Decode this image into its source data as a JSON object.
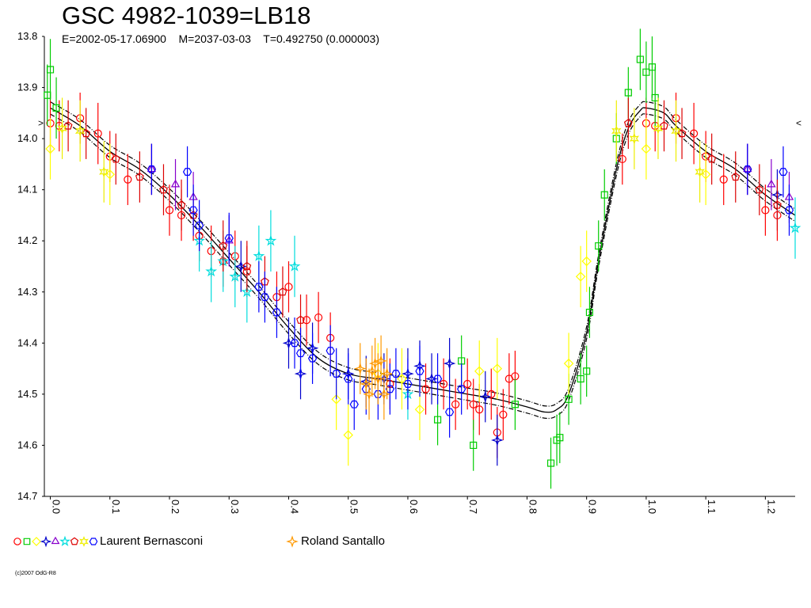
{
  "header": {
    "title": "GSC 4982-1039=LB18",
    "subtitle": "E=2002-05-17.06900    M=2037-03-03    T=0.492750 (0.000003)"
  },
  "chart_data": {
    "type": "scatter",
    "title": "GSC 4982-1039=LB18",
    "xlabel": "",
    "ylabel": "",
    "xlim": [
      -0.01,
      1.25
    ],
    "ylim": [
      13.8,
      14.7
    ],
    "y_inverted": true,
    "grid": false,
    "x_ticks": [
      0.0,
      0.1,
      0.2,
      0.3,
      0.4,
      0.5,
      0.6,
      0.7,
      0.8,
      0.9,
      1.0,
      1.1,
      1.2
    ],
    "x_tick_labels": [
      "0.0",
      "0.1",
      "0.2",
      "0.3",
      "0.4",
      "0.5",
      "0.6",
      "0.7",
      "0.8",
      "0.9",
      "1.0",
      "1.1",
      "1.2"
    ],
    "y_ticks": [
      13.8,
      13.9,
      14.0,
      14.1,
      14.2,
      14.3,
      14.4,
      14.5,
      14.6,
      14.7
    ],
    "y_tick_labels": [
      "13.8",
      "13.9",
      "14.0",
      "14.1",
      "14.2",
      "14.3",
      "14.4",
      "14.5",
      "14.6",
      "14.7"
    ],
    "side_marks": {
      "left": ">",
      "right": "<",
      "level": 13.97
    },
    "model_curve": {
      "x": [
        0.0,
        0.05,
        0.1,
        0.15,
        0.2,
        0.25,
        0.3,
        0.35,
        0.4,
        0.45,
        0.5,
        0.55,
        0.6,
        0.65,
        0.7,
        0.75,
        0.8,
        0.83,
        0.85,
        0.87,
        0.9,
        0.92,
        0.95,
        0.97,
        0.99,
        1.0,
        1.03,
        1.05,
        1.1,
        1.15,
        1.2,
        1.25
      ],
      "y": [
        13.94,
        13.975,
        14.025,
        14.06,
        14.11,
        14.17,
        14.235,
        14.3,
        14.37,
        14.43,
        14.46,
        14.47,
        14.48,
        14.49,
        14.5,
        14.51,
        14.525,
        14.535,
        14.53,
        14.5,
        14.38,
        14.24,
        14.06,
        13.98,
        13.945,
        13.94,
        13.95,
        13.975,
        14.025,
        14.06,
        14.11,
        14.15
      ],
      "band": 0.012
    },
    "series": [
      {
        "name": "Laurent Bernasconi",
        "marker": "circle",
        "color": "#ff0000",
        "points": [
          [
            0.0,
            13.97,
            0.06
          ],
          [
            0.015,
            13.975,
            0.05
          ],
          [
            0.05,
            13.96,
            0.05
          ],
          [
            0.08,
            13.99,
            0.06
          ],
          [
            0.1,
            14.035,
            0.05
          ],
          [
            0.13,
            14.08,
            0.05
          ],
          [
            0.17,
            14.06,
            0.05
          ],
          [
            0.2,
            14.14,
            0.05
          ],
          [
            0.22,
            14.15,
            0.05
          ],
          [
            0.25,
            14.19,
            0.05
          ],
          [
            0.27,
            14.22,
            0.05
          ],
          [
            0.29,
            14.24,
            0.05
          ],
          [
            0.31,
            14.23,
            0.05
          ],
          [
            0.33,
            14.26,
            0.05
          ],
          [
            0.38,
            14.31,
            0.05
          ],
          [
            0.4,
            14.29,
            0.05
          ],
          [
            0.43,
            14.355,
            0.05
          ],
          [
            0.45,
            14.35,
            0.05
          ],
          [
            0.47,
            14.39,
            0.05
          ],
          [
            0.57,
            14.48,
            0.05
          ],
          [
            0.63,
            14.49,
            0.05
          ],
          [
            0.66,
            14.48,
            0.05
          ],
          [
            0.68,
            14.52,
            0.05
          ],
          [
            0.7,
            14.48,
            0.05
          ],
          [
            0.71,
            14.52,
            0.05
          ],
          [
            0.72,
            14.53,
            0.05
          ],
          [
            0.74,
            14.5,
            0.05
          ],
          [
            0.75,
            14.575,
            0.05
          ],
          [
            0.76,
            14.54,
            0.05
          ],
          [
            0.77,
            14.47,
            0.05
          ],
          [
            0.78,
            14.465,
            0.05
          ],
          [
            0.96,
            14.04,
            0.05
          ],
          [
            1.0,
            13.97,
            0.05
          ],
          [
            1.015,
            13.975,
            0.05
          ],
          [
            1.05,
            13.96,
            0.05
          ],
          [
            1.08,
            13.99,
            0.06
          ],
          [
            1.1,
            14.035,
            0.05
          ],
          [
            1.13,
            14.08,
            0.05
          ],
          [
            1.17,
            14.06,
            0.05
          ],
          [
            1.2,
            14.14,
            0.05
          ],
          [
            1.22,
            14.15,
            0.05
          ]
        ]
      },
      {
        "name": "Laurent Bernasconi",
        "marker": "square",
        "color": "#00cc00",
        "points": [
          [
            -0.005,
            13.915,
            0.06
          ],
          [
            0.0,
            13.865,
            0.06
          ],
          [
            0.01,
            13.94,
            0.06
          ],
          [
            0.65,
            14.55,
            0.05
          ],
          [
            0.69,
            14.435,
            0.05
          ],
          [
            0.71,
            14.6,
            0.05
          ],
          [
            0.78,
            14.52,
            0.05
          ],
          [
            0.84,
            14.635,
            0.05
          ],
          [
            0.85,
            14.59,
            0.05
          ],
          [
            0.855,
            14.585,
            0.05
          ],
          [
            0.87,
            14.51,
            0.05
          ],
          [
            0.89,
            14.47,
            0.05
          ],
          [
            0.9,
            14.455,
            0.05
          ],
          [
            0.905,
            14.34,
            0.05
          ],
          [
            0.92,
            14.21,
            0.05
          ],
          [
            0.93,
            14.11,
            0.05
          ],
          [
            0.95,
            14.0,
            0.05
          ],
          [
            0.97,
            13.91,
            0.05
          ],
          [
            0.99,
            13.845,
            0.06
          ],
          [
            1.0,
            13.87,
            0.06
          ],
          [
            1.01,
            13.86,
            0.06
          ],
          [
            1.015,
            13.92,
            0.06
          ]
        ]
      },
      {
        "name": "Laurent Bernasconi",
        "marker": "diamond",
        "color": "#ffff00",
        "points": [
          [
            0.0,
            14.02,
            0.06
          ],
          [
            0.1,
            14.07,
            0.06
          ],
          [
            0.48,
            14.51,
            0.06
          ],
          [
            0.5,
            14.58,
            0.06
          ],
          [
            0.55,
            14.46,
            0.06
          ],
          [
            0.59,
            14.47,
            0.06
          ],
          [
            0.62,
            14.53,
            0.06
          ],
          [
            0.72,
            14.455,
            0.06
          ],
          [
            0.75,
            14.45,
            0.06
          ],
          [
            0.87,
            14.44,
            0.06
          ],
          [
            0.89,
            14.27,
            0.06
          ],
          [
            0.9,
            14.24,
            0.06
          ],
          [
            1.0,
            14.02,
            0.06
          ],
          [
            1.1,
            14.07,
            0.06
          ]
        ]
      },
      {
        "name": "Laurent Bernasconi",
        "marker": "star4",
        "color": "#0000cc",
        "points": [
          [
            0.32,
            14.25,
            0.05
          ],
          [
            0.4,
            14.4,
            0.05
          ],
          [
            0.42,
            14.46,
            0.05
          ],
          [
            0.44,
            14.41,
            0.05
          ],
          [
            0.5,
            14.46,
            0.05
          ],
          [
            0.53,
            14.475,
            0.05
          ],
          [
            0.56,
            14.47,
            0.05
          ],
          [
            0.6,
            14.46,
            0.05
          ],
          [
            0.62,
            14.445,
            0.05
          ],
          [
            0.64,
            14.47,
            0.05
          ],
          [
            0.67,
            14.44,
            0.05
          ],
          [
            0.73,
            14.505,
            0.05
          ],
          [
            0.75,
            14.59,
            0.05
          ],
          [
            1.22,
            14.11,
            0.05
          ]
        ]
      },
      {
        "name": "Laurent Bernasconi",
        "marker": "triangle",
        "color": "#8800cc",
        "points": [
          [
            0.17,
            14.06,
            0.05
          ],
          [
            0.21,
            14.09,
            0.05
          ],
          [
            0.24,
            14.115,
            0.05
          ],
          [
            0.3,
            14.2,
            0.05
          ],
          [
            1.17,
            14.06,
            0.05
          ],
          [
            1.21,
            14.09,
            0.05
          ],
          [
            1.24,
            14.115,
            0.05
          ]
        ]
      },
      {
        "name": "Laurent Bernasconi",
        "marker": "star5",
        "color": "#00dddd",
        "points": [
          [
            0.25,
            14.2,
            0.06
          ],
          [
            0.27,
            14.26,
            0.06
          ],
          [
            0.29,
            14.24,
            0.06
          ],
          [
            0.31,
            14.27,
            0.06
          ],
          [
            0.33,
            14.3,
            0.06
          ],
          [
            0.35,
            14.23,
            0.06
          ],
          [
            0.37,
            14.2,
            0.06
          ],
          [
            0.41,
            14.25,
            0.06
          ],
          [
            0.6,
            14.5,
            0.05
          ],
          [
            1.25,
            14.175,
            0.06
          ]
        ]
      },
      {
        "name": "Laurent Bernasconi",
        "marker": "pentagon",
        "color": "#dd0000",
        "points": [
          [
            0.03,
            13.975,
            0.05
          ],
          [
            0.06,
            13.99,
            0.05
          ],
          [
            0.11,
            14.04,
            0.05
          ],
          [
            0.15,
            14.075,
            0.05
          ],
          [
            0.19,
            14.1,
            0.05
          ],
          [
            0.22,
            14.13,
            0.05
          ],
          [
            0.24,
            14.15,
            0.05
          ],
          [
            0.29,
            14.21,
            0.05
          ],
          [
            0.33,
            14.25,
            0.05
          ],
          [
            0.36,
            14.28,
            0.05
          ],
          [
            0.39,
            14.3,
            0.05
          ],
          [
            0.42,
            14.355,
            0.05
          ],
          [
            0.97,
            13.97,
            0.05
          ],
          [
            1.03,
            13.975,
            0.05
          ],
          [
            1.06,
            13.99,
            0.05
          ],
          [
            1.11,
            14.04,
            0.05
          ],
          [
            1.15,
            14.075,
            0.05
          ],
          [
            1.19,
            14.1,
            0.05
          ],
          [
            1.22,
            14.13,
            0.05
          ]
        ]
      },
      {
        "name": "Laurent Bernasconi",
        "marker": "star6",
        "color": "#eeee00",
        "points": [
          [
            0.02,
            13.98,
            0.06
          ],
          [
            0.05,
            13.985,
            0.06
          ],
          [
            0.09,
            14.065,
            0.06
          ],
          [
            0.95,
            13.985,
            0.06
          ],
          [
            0.98,
            14.0,
            0.06
          ],
          [
            1.02,
            13.98,
            0.06
          ],
          [
            1.05,
            13.985,
            0.06
          ],
          [
            1.09,
            14.065,
            0.06
          ]
        ]
      },
      {
        "name": "Laurent Bernasconi",
        "marker": "hexagon",
        "color": "#0000ff",
        "points": [
          [
            0.17,
            14.06,
            0.05
          ],
          [
            0.23,
            14.065,
            0.05
          ],
          [
            0.24,
            14.14,
            0.05
          ],
          [
            0.25,
            14.17,
            0.05
          ],
          [
            0.3,
            14.195,
            0.05
          ],
          [
            0.35,
            14.29,
            0.05
          ],
          [
            0.36,
            14.31,
            0.05
          ],
          [
            0.38,
            14.34,
            0.05
          ],
          [
            0.41,
            14.4,
            0.05
          ],
          [
            0.42,
            14.42,
            0.05
          ],
          [
            0.44,
            14.43,
            0.05
          ],
          [
            0.47,
            14.415,
            0.05
          ],
          [
            0.48,
            14.46,
            0.05
          ],
          [
            0.5,
            14.47,
            0.05
          ],
          [
            0.51,
            14.52,
            0.05
          ],
          [
            0.53,
            14.49,
            0.05
          ],
          [
            0.55,
            14.5,
            0.05
          ],
          [
            0.57,
            14.49,
            0.05
          ],
          [
            0.58,
            14.46,
            0.05
          ],
          [
            0.6,
            14.48,
            0.05
          ],
          [
            0.62,
            14.455,
            0.05
          ],
          [
            0.65,
            14.47,
            0.05
          ],
          [
            0.67,
            14.535,
            0.05
          ],
          [
            0.69,
            14.49,
            0.05
          ],
          [
            1.17,
            14.06,
            0.05
          ],
          [
            1.23,
            14.065,
            0.05
          ],
          [
            1.24,
            14.14,
            0.05
          ]
        ]
      },
      {
        "name": "Roland Santallo",
        "marker": "star4",
        "color": "#ff9900",
        "points": [
          [
            0.52,
            14.45,
            0.05
          ],
          [
            0.53,
            14.48,
            0.05
          ],
          [
            0.535,
            14.5,
            0.05
          ],
          [
            0.54,
            14.455,
            0.05
          ],
          [
            0.545,
            14.44,
            0.05
          ],
          [
            0.55,
            14.47,
            0.05
          ],
          [
            0.555,
            14.435,
            0.05
          ],
          [
            0.56,
            14.5,
            0.05
          ],
          [
            0.565,
            14.46,
            0.05
          ]
        ]
      }
    ]
  },
  "legend": {
    "group1_label": "Laurent Bernasconi",
    "group2_label": "Roland Santallo"
  },
  "footer": {
    "copyright": "(c)2007 OdG-R8"
  }
}
